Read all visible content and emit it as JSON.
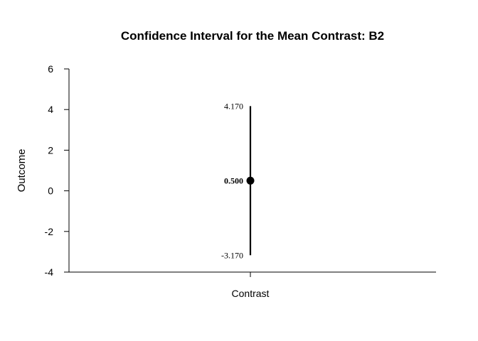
{
  "chart_data": {
    "type": "errorbar",
    "title": "Confidence Interval for the Mean Contrast: B2",
    "xlabel": "",
    "ylabel": "Outcome",
    "categories": [
      "Contrast"
    ],
    "ylim": [
      -4,
      6
    ],
    "yticks": [
      -4,
      -2,
      0,
      2,
      4,
      6
    ],
    "points": [
      {
        "category": "Contrast",
        "estimate": 0.5,
        "lower": -3.17,
        "upper": 4.17,
        "estimate_label": "0.500",
        "lower_label": "-3.170",
        "upper_label": "4.170"
      }
    ],
    "grid": false,
    "colors": {
      "line": "#000000",
      "point": "#000000"
    }
  }
}
